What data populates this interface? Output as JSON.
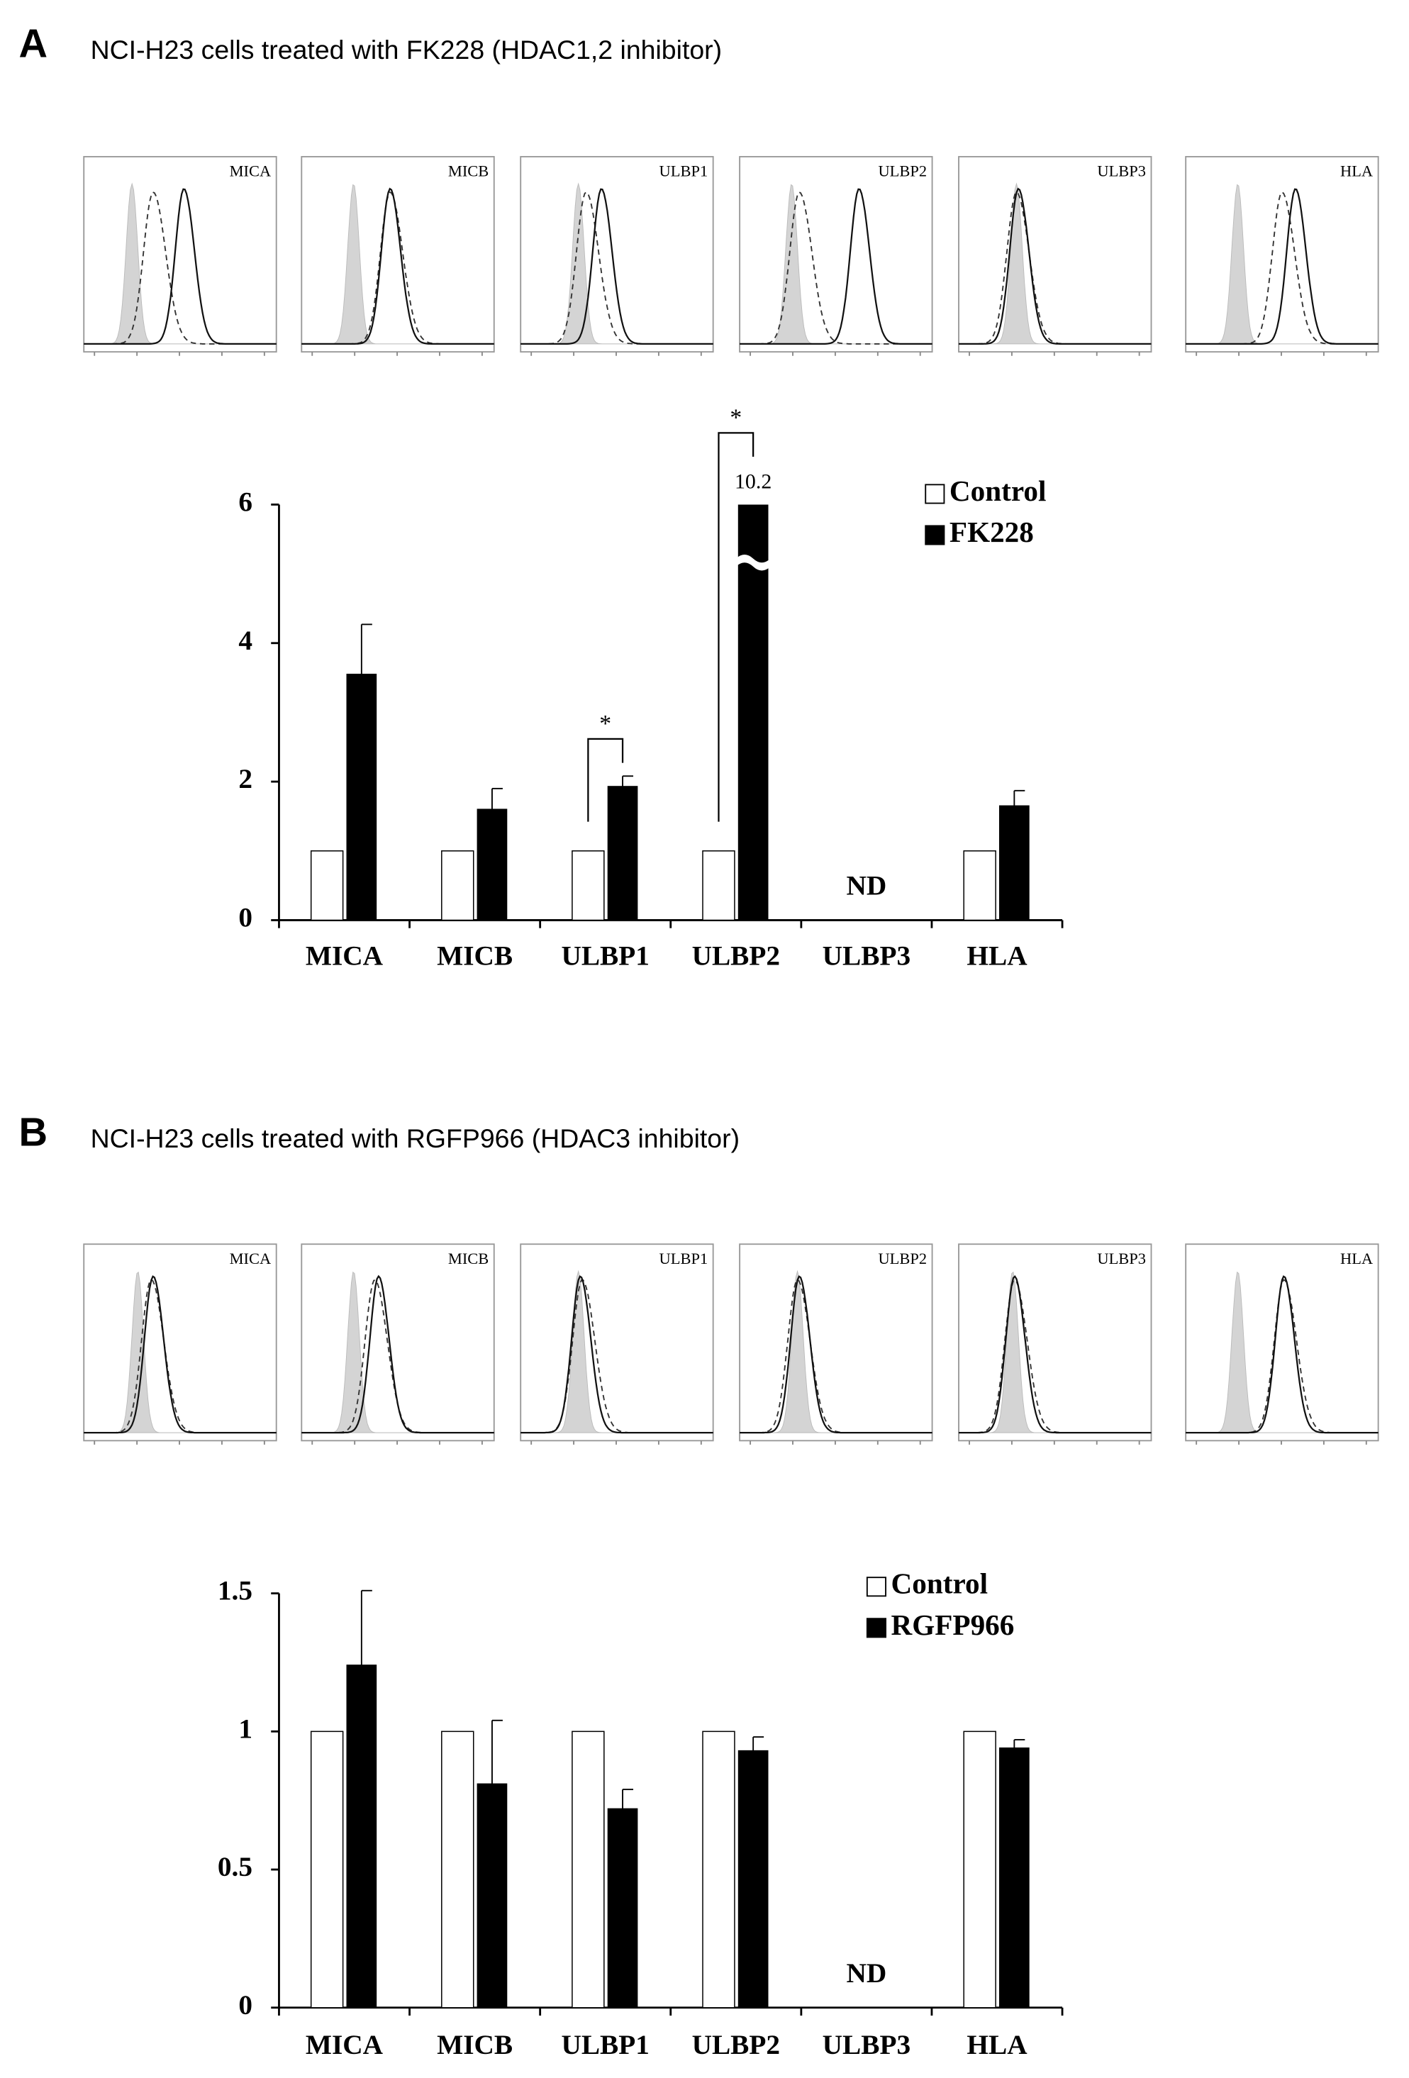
{
  "chart_data": [
    {
      "type": "bar",
      "panel": "A",
      "title": "NCI-H23 cells treated with FK228 (HDAC1,2 inhibitor)",
      "categories": [
        "MICA",
        "MICB",
        "ULBP1",
        "ULBP2",
        "ULBP3",
        "HLA"
      ],
      "series": [
        {
          "name": "Control",
          "color": "#ffffff",
          "values": [
            1,
            1,
            1,
            1,
            null,
            1
          ]
        },
        {
          "name": "FK228",
          "color": "#000000",
          "values": [
            3.55,
            1.6,
            1.93,
            10.2,
            null,
            1.65
          ],
          "errors": [
            0.72,
            0.3,
            0.15,
            null,
            null,
            0.22
          ],
          "value_labels": [
            null,
            null,
            null,
            "10.2",
            null,
            null
          ]
        }
      ],
      "ylim": [
        0,
        6
      ],
      "yticks": [
        0,
        2,
        4,
        6
      ],
      "legend": "upper right",
      "annotations": [
        {
          "text": "*",
          "category": "ULBP1"
        },
        {
          "text": "*",
          "category": "ULBP2"
        },
        {
          "text": "ND",
          "category": "ULBP3"
        }
      ]
    },
    {
      "type": "bar",
      "panel": "B",
      "title": "NCI-H23 cells treated with RGFP966 (HDAC3 inhibitor)",
      "categories": [
        "MICA",
        "MICB",
        "ULBP1",
        "ULBP2",
        "ULBP3",
        "HLA"
      ],
      "series": [
        {
          "name": "Control",
          "color": "#ffffff",
          "values": [
            1,
            1,
            1,
            1,
            null,
            1
          ]
        },
        {
          "name": "RGFP966",
          "color": "#000000",
          "values": [
            1.24,
            0.81,
            0.72,
            0.93,
            null,
            0.94
          ],
          "errors": [
            0.27,
            0.23,
            0.07,
            0.05,
            null,
            0.03
          ]
        }
      ],
      "ylim": [
        0,
        1.5
      ],
      "yticks": [
        0,
        0.5,
        1,
        1.5
      ],
      "legend": "upper right",
      "annotations": [
        {
          "text": "ND",
          "category": "ULBP3"
        }
      ]
    }
  ]
}
